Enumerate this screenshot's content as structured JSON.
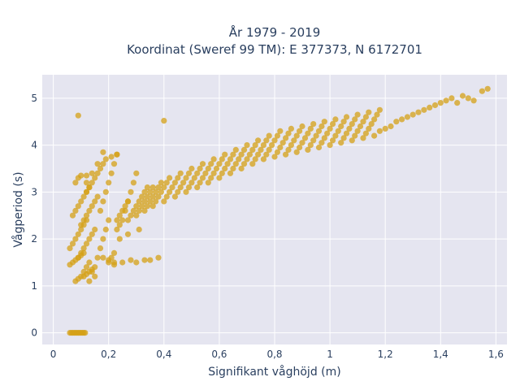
{
  "chart_data": {
    "type": "scatter",
    "title": [
      "År 1979 - 2019",
      "Koordinat (Sweref 99 TM): E 377373, N 6172701"
    ],
    "xlabel": "Signifikant våghöjd (m)",
    "ylabel": "Vågperiod (s)",
    "xlim": [
      -0.04,
      1.64
    ],
    "ylim": [
      -0.25,
      5.5
    ],
    "x_ticks": [
      0,
      0.2,
      0.4,
      0.6,
      0.8,
      1,
      1.2,
      1.4,
      1.6
    ],
    "x_tick_labels": [
      "0",
      "0,2",
      "0,4",
      "0,6",
      "0,8",
      "1",
      "1,2",
      "1,4",
      "1,6"
    ],
    "y_ticks": [
      0,
      1,
      2,
      3,
      4,
      5
    ],
    "y_tick_labels": [
      "0",
      "1",
      "2",
      "3",
      "4",
      "5"
    ],
    "grid": true,
    "legend": "none",
    "colors": {
      "marker": "#d4a017",
      "plot_bg": "#e5e5f0",
      "grid": "#ffffff",
      "text": "#2a3f5f"
    },
    "series": [
      {
        "x": [
          0.06,
          0.07,
          0.08,
          0.09,
          0.1,
          0.11,
          0.06,
          0.07,
          0.08,
          0.09,
          0.1,
          0.11,
          0.12,
          0.07,
          0.08,
          0.09,
          0.1,
          0.11,
          0.12,
          0.13,
          0.08,
          0.09,
          0.1,
          0.11,
          0.12,
          0.13,
          0.14,
          0.08,
          0.09,
          0.1,
          0.11,
          0.12,
          0.13,
          0.09,
          0.1,
          0.11,
          0.12,
          0.13,
          0.14,
          0.15,
          0.1,
          0.11,
          0.12,
          0.13,
          0.14,
          0.15,
          0.16,
          0.12,
          0.13,
          0.14,
          0.15,
          0.16,
          0.17,
          0.18,
          0.14,
          0.15,
          0.16,
          0.17,
          0.18,
          0.19,
          0.2,
          0.17,
          0.18,
          0.19,
          0.2,
          0.21,
          0.22,
          0.23,
          0.2,
          0.21,
          0.22,
          0.23,
          0.24,
          0.25,
          0.26,
          0.27,
          0.23,
          0.24,
          0.25,
          0.26,
          0.27,
          0.28,
          0.29,
          0.3,
          0.27,
          0.28,
          0.29,
          0.3,
          0.31,
          0.32,
          0.33,
          0.34,
          0.3,
          0.31,
          0.32,
          0.33,
          0.34,
          0.35,
          0.36,
          0.33,
          0.34,
          0.35,
          0.36,
          0.37,
          0.38,
          0.39,
          0.36,
          0.37,
          0.38,
          0.39,
          0.4,
          0.41,
          0.42,
          0.4,
          0.41,
          0.42,
          0.43,
          0.44,
          0.45,
          0.46,
          0.44,
          0.45,
          0.46,
          0.47,
          0.48,
          0.49,
          0.5,
          0.48,
          0.49,
          0.5,
          0.51,
          0.52,
          0.53,
          0.54,
          0.52,
          0.53,
          0.54,
          0.55,
          0.56,
          0.57,
          0.58,
          0.56,
          0.57,
          0.58,
          0.59,
          0.6,
          0.61,
          0.62,
          0.6,
          0.61,
          0.62,
          0.63,
          0.64,
          0.65,
          0.66,
          0.64,
          0.65,
          0.66,
          0.67,
          0.68,
          0.69,
          0.7,
          0.68,
          0.69,
          0.7,
          0.71,
          0.72,
          0.73,
          0.74,
          0.72,
          0.73,
          0.74,
          0.75,
          0.76,
          0.77,
          0.78,
          0.76,
          0.77,
          0.78,
          0.79,
          0.8,
          0.81,
          0.82,
          0.8,
          0.81,
          0.82,
          0.83,
          0.84,
          0.85,
          0.86,
          0.84,
          0.85,
          0.86,
          0.87,
          0.88,
          0.89,
          0.9,
          0.88,
          0.89,
          0.9,
          0.91,
          0.92,
          0.93,
          0.94,
          0.92,
          0.93,
          0.94,
          0.95,
          0.96,
          0.97,
          0.98,
          0.96,
          0.97,
          0.98,
          0.99,
          1.0,
          1.01,
          1.02,
          1.0,
          1.01,
          1.02,
          1.03,
          1.04,
          1.05,
          1.06,
          1.04,
          1.05,
          1.06,
          1.07,
          1.08,
          1.09,
          1.1,
          1.08,
          1.09,
          1.1,
          1.11,
          1.12,
          1.13,
          1.14,
          1.12,
          1.13,
          1.14,
          1.15,
          1.16,
          1.17,
          1.18,
          1.16,
          1.18,
          1.2,
          1.22,
          1.24,
          1.26,
          1.28,
          1.3,
          1.32,
          1.34,
          1.36,
          1.38,
          1.4,
          1.42,
          1.44,
          1.46,
          1.48,
          1.5,
          1.52,
          1.55,
          1.57,
          0.09,
          0.4,
          0.12,
          0.18,
          0.38,
          0.22,
          0.35,
          0.06,
          0.07,
          0.08,
          0.09,
          0.1,
          0.11,
          0.065,
          0.075,
          0.085,
          0.095,
          0.105,
          0.115,
          0.2,
          0.25,
          0.3,
          0.33,
          0.18,
          0.22,
          0.28,
          0.15,
          0.13,
          0.24,
          0.27,
          0.31,
          0.12,
          0.14,
          0.16,
          0.19,
          0.21,
          0.23
        ],
        "y": [
          1.45,
          1.5,
          1.55,
          1.6,
          1.65,
          1.7,
          1.8,
          1.9,
          2.0,
          2.1,
          2.2,
          2.3,
          2.4,
          2.5,
          2.6,
          2.7,
          2.8,
          2.9,
          3.0,
          3.1,
          3.2,
          3.3,
          3.35,
          1.2,
          1.25,
          1.3,
          1.35,
          1.1,
          1.15,
          1.2,
          1.3,
          1.4,
          1.5,
          1.6,
          1.7,
          1.8,
          1.9,
          2.0,
          2.1,
          2.2,
          2.3,
          2.4,
          2.5,
          2.6,
          2.7,
          2.8,
          2.9,
          3.0,
          3.1,
          3.2,
          3.3,
          3.4,
          3.5,
          3.6,
          1.3,
          1.4,
          1.6,
          1.8,
          2.0,
          2.2,
          2.4,
          2.6,
          2.8,
          3.0,
          3.2,
          3.4,
          3.6,
          3.8,
          1.5,
          1.6,
          1.7,
          2.4,
          2.5,
          2.6,
          2.7,
          2.8,
          2.2,
          2.3,
          2.4,
          2.6,
          2.8,
          3.0,
          3.2,
          3.4,
          2.4,
          2.5,
          2.6,
          2.7,
          2.8,
          2.9,
          3.0,
          3.1,
          2.5,
          2.6,
          2.7,
          2.8,
          2.9,
          3.0,
          3.1,
          2.6,
          2.7,
          2.8,
          2.9,
          3.0,
          3.1,
          3.2,
          2.7,
          2.8,
          2.9,
          3.0,
          3.1,
          3.2,
          3.3,
          2.8,
          2.9,
          3.0,
          3.1,
          3.2,
          3.3,
          3.4,
          2.9,
          3.0,
          3.1,
          3.2,
          3.3,
          3.4,
          3.5,
          3.0,
          3.1,
          3.2,
          3.3,
          3.4,
          3.5,
          3.6,
          3.1,
          3.2,
          3.3,
          3.4,
          3.5,
          3.6,
          3.7,
          3.2,
          3.3,
          3.4,
          3.5,
          3.6,
          3.7,
          3.8,
          3.3,
          3.4,
          3.5,
          3.6,
          3.7,
          3.8,
          3.9,
          3.4,
          3.5,
          3.6,
          3.7,
          3.8,
          3.9,
          4.0,
          3.5,
          3.6,
          3.7,
          3.8,
          3.9,
          4.0,
          4.1,
          3.6,
          3.7,
          3.8,
          3.9,
          4.0,
          4.1,
          4.2,
          3.7,
          3.8,
          3.9,
          4.0,
          4.1,
          4.2,
          4.3,
          3.75,
          3.85,
          3.95,
          4.05,
          4.15,
          4.25,
          4.35,
          3.8,
          3.9,
          4.0,
          4.1,
          4.2,
          4.3,
          4.4,
          3.85,
          3.95,
          4.05,
          4.15,
          4.25,
          4.35,
          4.45,
          3.9,
          4.0,
          4.1,
          4.2,
          4.3,
          4.4,
          4.5,
          3.95,
          4.05,
          4.15,
          4.25,
          4.35,
          4.45,
          4.55,
          4.0,
          4.1,
          4.2,
          4.3,
          4.4,
          4.5,
          4.6,
          4.05,
          4.15,
          4.25,
          4.35,
          4.45,
          4.55,
          4.65,
          4.1,
          4.2,
          4.3,
          4.4,
          4.5,
          4.6,
          4.7,
          4.15,
          4.25,
          4.35,
          4.45,
          4.55,
          4.65,
          4.75,
          4.2,
          4.3,
          4.35,
          4.4,
          4.5,
          4.55,
          4.6,
          4.65,
          4.7,
          4.75,
          4.8,
          4.85,
          4.9,
          4.95,
          5.0,
          4.9,
          5.05,
          5.0,
          4.95,
          5.15,
          5.2,
          4.63,
          4.52,
          3.35,
          3.85,
          1.6,
          1.45,
          1.55,
          0.0,
          0.0,
          0.0,
          0.0,
          0.0,
          0.0,
          0.0,
          0.0,
          0.0,
          0.0,
          0.0,
          0.0,
          1.55,
          1.5,
          1.5,
          1.55,
          1.6,
          1.5,
          1.55,
          1.2,
          1.1,
          2.0,
          2.1,
          2.2,
          3.2,
          3.4,
          3.6,
          3.7,
          3.75,
          3.8
        ]
      }
    ]
  }
}
